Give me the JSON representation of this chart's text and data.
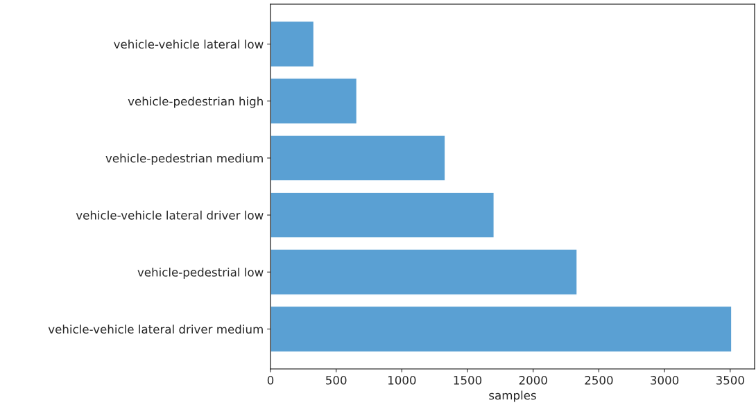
{
  "chart_data": {
    "type": "bar",
    "orientation": "horizontal",
    "xlabel": "samples",
    "categories": [
      "vehicle-vehicle lateral low",
      "vehicle-pedestrian high",
      "vehicle-pedestrian medium",
      "vehicle-vehicle lateral driver low",
      "vehicle-pedestrial low",
      "vehicle-vehicle lateral driver medium"
    ],
    "values": [
      330,
      657,
      1330,
      1702,
      2334,
      3511
    ],
    "color": "#5aa0d3",
    "xlim": [
      0,
      3686
    ],
    "xticks": [
      0,
      500,
      1000,
      1500,
      2000,
      2500,
      3000,
      3500
    ],
    "grid": false
  }
}
